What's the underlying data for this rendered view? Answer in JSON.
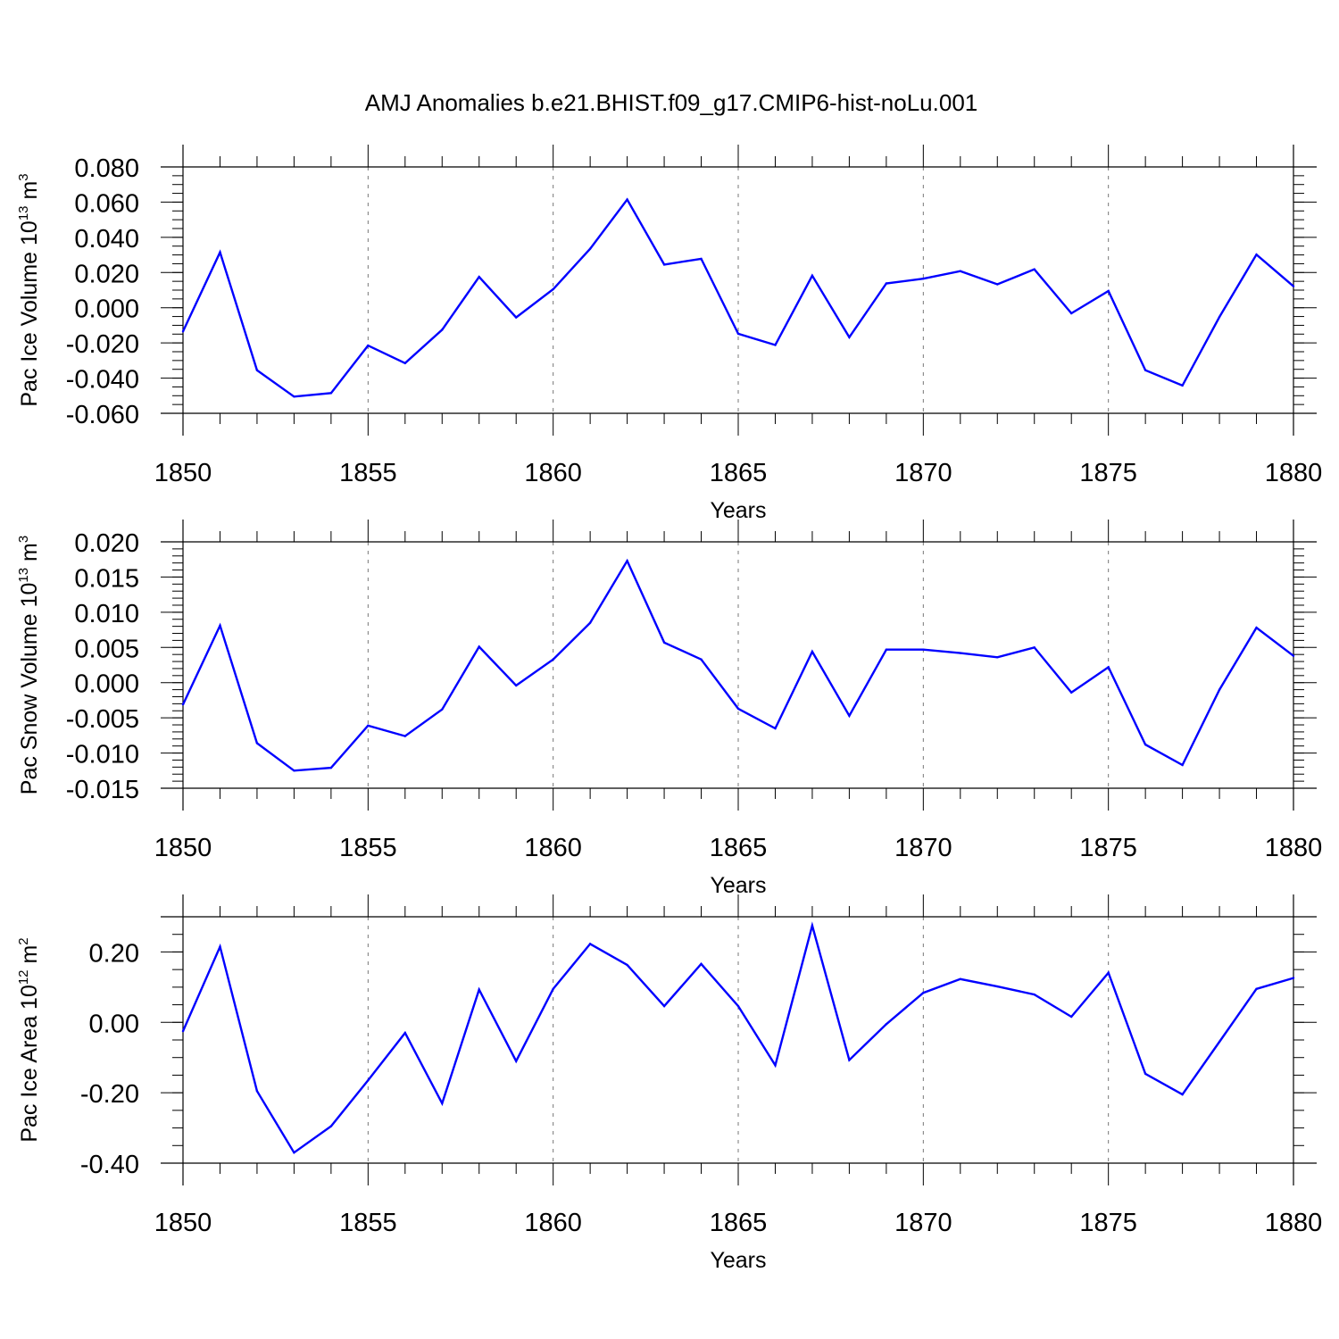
{
  "figure": {
    "title": "AMJ Anomalies b.e21.BHIST.f09_g17.CMIP6-hist-noLu.001",
    "line_color": "#0000ff",
    "grid_color": "#777777"
  },
  "chart_data": [
    {
      "type": "line",
      "name": "pac-ice-volume",
      "ylabel_base": "Pac Ice Volume 10",
      "ylabel_exp": "13",
      "ylabel_unit": " m",
      "ylabel_unit_exp": "3",
      "xlabel": "Years",
      "xlim": [
        1850,
        1880
      ],
      "ylim": [
        -0.06,
        0.08
      ],
      "ymajor": [
        -0.06,
        -0.04,
        -0.02,
        0.0,
        0.02,
        0.04,
        0.06,
        0.08
      ],
      "ytick_labels": [
        "-0.060",
        "-0.040",
        "-0.020",
        "0.000",
        "0.020",
        "0.040",
        "0.060",
        "0.080"
      ],
      "yminor_step": 0.005,
      "xmajor": [
        1850,
        1855,
        1860,
        1865,
        1870,
        1875,
        1880
      ],
      "xtick_labels": [
        "1850",
        "1855",
        "1860",
        "1865",
        "1870",
        "1875",
        "1880"
      ],
      "grid_x": [
        1855,
        1860,
        1865,
        1870,
        1875
      ],
      "x": [
        1850,
        1851,
        1852,
        1853,
        1854,
        1855,
        1856,
        1857,
        1858,
        1859,
        1860,
        1861,
        1862,
        1863,
        1864,
        1865,
        1866,
        1867,
        1868,
        1869,
        1870,
        1871,
        1872,
        1873,
        1874,
        1875,
        1876,
        1877,
        1878,
        1879,
        1880
      ],
      "series": [
        {
          "name": "Pac Ice Volume",
          "values": [
            -0.0135,
            0.0315,
            -0.0355,
            -0.0505,
            -0.0485,
            -0.0215,
            -0.0315,
            -0.0125,
            0.0175,
            -0.0055,
            0.0105,
            0.0335,
            0.0615,
            0.0245,
            0.0278,
            -0.0148,
            -0.0212,
            0.0182,
            -0.0168,
            0.0138,
            0.0165,
            0.0208,
            0.0133,
            0.0218,
            -0.0032,
            0.0095,
            -0.0355,
            -0.0442,
            -0.0052,
            0.0302,
            0.0122
          ]
        }
      ]
    },
    {
      "type": "line",
      "name": "pac-snow-volume",
      "ylabel_base": "Pac Snow Volume 10",
      "ylabel_exp": "13",
      "ylabel_unit": " m",
      "ylabel_unit_exp": "3",
      "xlabel": "Years",
      "xlim": [
        1850,
        1880
      ],
      "ylim": [
        -0.015,
        0.02
      ],
      "ymajor": [
        -0.015,
        -0.01,
        -0.005,
        0.0,
        0.005,
        0.01,
        0.015,
        0.02
      ],
      "ytick_labels": [
        "-0.015",
        "-0.010",
        "-0.005",
        "0.000",
        "0.005",
        "0.010",
        "0.015",
        "0.020"
      ],
      "yminor_step": 0.001,
      "xmajor": [
        1850,
        1855,
        1860,
        1865,
        1870,
        1875,
        1880
      ],
      "xtick_labels": [
        "1850",
        "1855",
        "1860",
        "1865",
        "1870",
        "1875",
        "1880"
      ],
      "grid_x": [
        1855,
        1860,
        1865,
        1870,
        1875
      ],
      "x": [
        1850,
        1851,
        1852,
        1853,
        1854,
        1855,
        1856,
        1857,
        1858,
        1859,
        1860,
        1861,
        1862,
        1863,
        1864,
        1865,
        1866,
        1867,
        1868,
        1869,
        1870,
        1871,
        1872,
        1873,
        1874,
        1875,
        1876,
        1877,
        1878,
        1879,
        1880
      ],
      "series": [
        {
          "name": "Pac Snow Volume",
          "values": [
            -0.0031,
            0.0081,
            -0.0086,
            -0.0125,
            -0.0121,
            -0.0061,
            -0.0076,
            -0.0038,
            0.0051,
            -0.0004,
            0.0033,
            0.0085,
            0.0173,
            0.0057,
            0.0033,
            -0.0037,
            -0.0065,
            0.0044,
            -0.0047,
            0.0047,
            0.0047,
            0.0042,
            0.0036,
            0.005,
            -0.0014,
            0.0022,
            -0.0088,
            -0.0117,
            -0.001,
            0.0078,
            0.0038
          ]
        }
      ]
    },
    {
      "type": "line",
      "name": "pac-ice-area",
      "ylabel_base": "Pac Ice Area 10",
      "ylabel_exp": "12",
      "ylabel_unit": " m",
      "ylabel_unit_exp": "2",
      "xlabel": "Years",
      "xlim": [
        1850,
        1880
      ],
      "ylim": [
        -0.4,
        0.3
      ],
      "ymajor": [
        -0.4,
        -0.2,
        0.0,
        0.2
      ],
      "ytick_labels": [
        "-0.40",
        "-0.20",
        "0.00",
        "0.20"
      ],
      "yminor_step": 0.05,
      "xmajor": [
        1850,
        1855,
        1860,
        1865,
        1870,
        1875,
        1880
      ],
      "xtick_labels": [
        "1850",
        "1855",
        "1860",
        "1865",
        "1870",
        "1875",
        "1880"
      ],
      "grid_x": [
        1855,
        1860,
        1865,
        1870,
        1875
      ],
      "x": [
        1850,
        1851,
        1852,
        1853,
        1854,
        1855,
        1856,
        1857,
        1858,
        1859,
        1860,
        1861,
        1862,
        1863,
        1864,
        1865,
        1866,
        1867,
        1868,
        1869,
        1870,
        1871,
        1872,
        1873,
        1874,
        1875,
        1876,
        1877,
        1878,
        1879,
        1880
      ],
      "series": [
        {
          "name": "Pac Ice Area",
          "values": [
            -0.025,
            0.215,
            -0.195,
            -0.37,
            -0.295,
            -0.165,
            -0.03,
            -0.23,
            0.093,
            -0.11,
            0.095,
            0.223,
            0.163,
            0.046,
            0.166,
            0.046,
            -0.122,
            0.275,
            -0.107,
            -0.005,
            0.084,
            0.123,
            0.102,
            0.079,
            0.016,
            0.141,
            -0.146,
            -0.205,
            -0.055,
            0.095,
            0.126
          ]
        }
      ]
    }
  ]
}
